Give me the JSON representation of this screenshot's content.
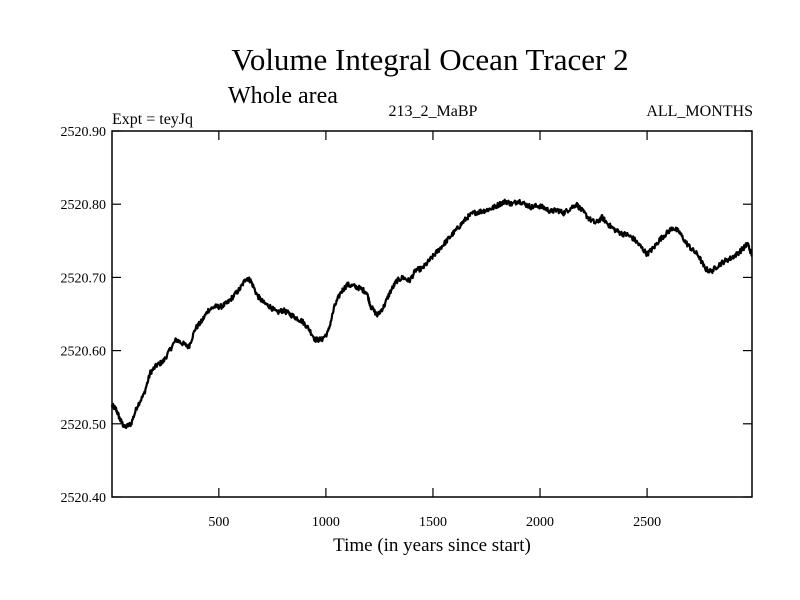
{
  "chart_data": {
    "type": "line",
    "title": "Volume Integral Ocean Tracer 2",
    "subtitle": "Whole area",
    "labels": {
      "left": "Expt = teyJq",
      "center": "213_2_MaBP",
      "right": "ALL_MONTHS"
    },
    "xlabel": "Time (in years since start)",
    "ylabel": "",
    "xlim": [
      1,
      2990
    ],
    "ylim": [
      2520.4,
      2520.9
    ],
    "x_ticks": [
      500,
      1000,
      1500,
      2000,
      2500
    ],
    "y_ticks": [
      2520.4,
      2520.5,
      2520.6,
      2520.7,
      2520.8,
      2520.9
    ],
    "y_tick_labels": [
      "2520.40",
      "2520.50",
      "2520.60",
      "2520.70",
      "2520.80",
      "2520.90"
    ],
    "grid": false,
    "series": [
      {
        "name": "Volume Integral Ocean Tracer 2",
        "color": "#000000",
        "points": [
          [
            1,
            2520.525
          ],
          [
            20,
            2520.52
          ],
          [
            40,
            2520.505
          ],
          [
            60,
            2520.495
          ],
          [
            90,
            2520.5
          ],
          [
            120,
            2520.525
          ],
          [
            150,
            2520.54
          ],
          [
            180,
            2520.57
          ],
          [
            210,
            2520.58
          ],
          [
            240,
            2520.585
          ],
          [
            270,
            2520.6
          ],
          [
            300,
            2520.615
          ],
          [
            330,
            2520.61
          ],
          [
            360,
            2520.605
          ],
          [
            390,
            2520.63
          ],
          [
            420,
            2520.64
          ],
          [
            450,
            2520.655
          ],
          [
            480,
            2520.66
          ],
          [
            510,
            2520.66
          ],
          [
            540,
            2520.665
          ],
          [
            570,
            2520.675
          ],
          [
            600,
            2520.685
          ],
          [
            630,
            2520.7
          ],
          [
            650,
            2520.695
          ],
          [
            680,
            2520.675
          ],
          [
            710,
            2520.665
          ],
          [
            740,
            2520.66
          ],
          [
            770,
            2520.652
          ],
          [
            800,
            2520.655
          ],
          [
            830,
            2520.65
          ],
          [
            860,
            2520.645
          ],
          [
            890,
            2520.64
          ],
          [
            920,
            2520.63
          ],
          [
            950,
            2520.615
          ],
          [
            980,
            2520.615
          ],
          [
            1010,
            2520.625
          ],
          [
            1040,
            2520.66
          ],
          [
            1070,
            2520.68
          ],
          [
            1100,
            2520.69
          ],
          [
            1130,
            2520.688
          ],
          [
            1160,
            2520.685
          ],
          [
            1190,
            2520.68
          ],
          [
            1210,
            2520.66
          ],
          [
            1240,
            2520.648
          ],
          [
            1270,
            2520.66
          ],
          [
            1300,
            2520.68
          ],
          [
            1330,
            2520.695
          ],
          [
            1360,
            2520.7
          ],
          [
            1390,
            2520.695
          ],
          [
            1420,
            2520.71
          ],
          [
            1450,
            2520.712
          ],
          [
            1480,
            2520.722
          ],
          [
            1510,
            2520.732
          ],
          [
            1540,
            2520.742
          ],
          [
            1570,
            2520.752
          ],
          [
            1600,
            2520.762
          ],
          [
            1630,
            2520.772
          ],
          [
            1660,
            2520.782
          ],
          [
            1690,
            2520.788
          ],
          [
            1720,
            2520.79
          ],
          [
            1750,
            2520.792
          ],
          [
            1780,
            2520.795
          ],
          [
            1810,
            2520.8
          ],
          [
            1840,
            2520.804
          ],
          [
            1870,
            2520.8
          ],
          [
            1900,
            2520.805
          ],
          [
            1930,
            2520.8
          ],
          [
            1960,
            2520.796
          ],
          [
            1990,
            2520.798
          ],
          [
            2020,
            2520.795
          ],
          [
            2050,
            2520.79
          ],
          [
            2080,
            2520.792
          ],
          [
            2110,
            2520.788
          ],
          [
            2140,
            2520.794
          ],
          [
            2170,
            2520.8
          ],
          [
            2200,
            2520.79
          ],
          [
            2230,
            2520.78
          ],
          [
            2260,
            2520.774
          ],
          [
            2290,
            2520.782
          ],
          [
            2320,
            2520.772
          ],
          [
            2350,
            2520.765
          ],
          [
            2380,
            2520.76
          ],
          [
            2410,
            2520.758
          ],
          [
            2440,
            2520.752
          ],
          [
            2470,
            2520.742
          ],
          [
            2500,
            2520.732
          ],
          [
            2530,
            2520.74
          ],
          [
            2560,
            2520.752
          ],
          [
            2590,
            2520.76
          ],
          [
            2620,
            2520.768
          ],
          [
            2650,
            2520.762
          ],
          [
            2680,
            2520.748
          ],
          [
            2710,
            2520.738
          ],
          [
            2740,
            2520.73
          ],
          [
            2770,
            2520.712
          ],
          [
            2800,
            2520.708
          ],
          [
            2830,
            2520.716
          ],
          [
            2860,
            2520.722
          ],
          [
            2890,
            2520.726
          ],
          [
            2920,
            2520.732
          ],
          [
            2950,
            2520.74
          ],
          [
            2970,
            2520.746
          ],
          [
            2990,
            2520.73
          ]
        ]
      }
    ]
  }
}
